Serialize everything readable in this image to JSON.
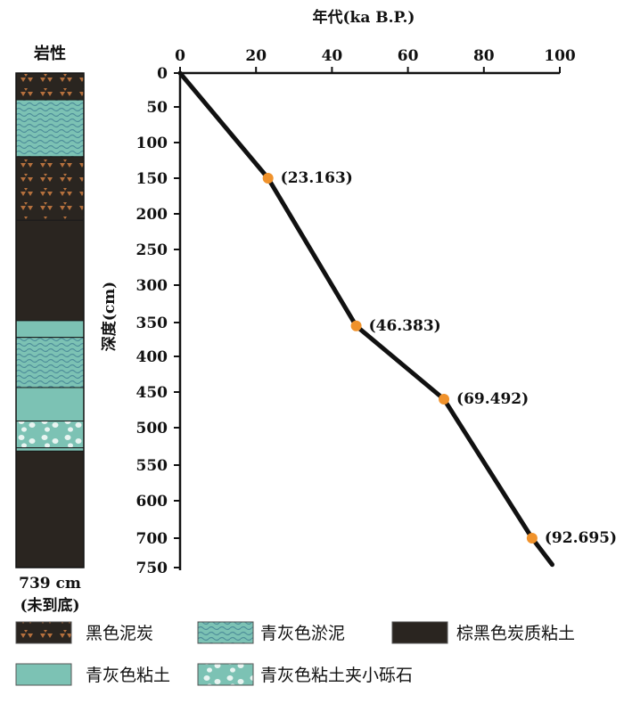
{
  "chart_data": {
    "type": "line",
    "title": "年代(ka B.P.)",
    "ylabel": "深度(cm)",
    "xlim": [
      0,
      100
    ],
    "x_ticks": [
      0,
      20,
      40,
      60,
      80,
      100
    ],
    "y_ticks": [
      0,
      50,
      100,
      150,
      200,
      250,
      300,
      350,
      400,
      450,
      500,
      550,
      600,
      700,
      750
    ],
    "x_axis_position": "top",
    "y_axis_inverted": true,
    "grid": false,
    "series": [
      {
        "line_color": "#111111",
        "points": [
          {
            "x": 0,
            "y": 0
          },
          {
            "x": 23.163,
            "y": 150
          },
          {
            "x": 46.383,
            "y": 355
          },
          {
            "x": 69.492,
            "y": 460
          },
          {
            "x": 92.695,
            "y": 700
          },
          {
            "x": 98,
            "y": 745
          }
        ]
      }
    ],
    "dated_points": [
      {
        "x": 23.163,
        "y": 150,
        "label": "(23.163)"
      },
      {
        "x": 46.383,
        "y": 355,
        "label": "(46.383)"
      },
      {
        "x": 69.492,
        "y": 460,
        "label": "(69.492)"
      },
      {
        "x": 92.695,
        "y": 700,
        "label": "(92.695)"
      }
    ],
    "marker_color": "#F0922B"
  },
  "lithology": {
    "title": "岩性",
    "depth_label": "739 cm",
    "note": "(未到底)",
    "layers": [
      {
        "type": "peat",
        "top": 0,
        "bottom": 40
      },
      {
        "type": "silt",
        "top": 40,
        "bottom": 125
      },
      {
        "type": "peat",
        "top": 125,
        "bottom": 220
      },
      {
        "type": "dark_clay",
        "top": 220,
        "bottom": 370
      },
      {
        "type": "clay",
        "top": 370,
        "bottom": 395
      },
      {
        "type": "silt",
        "top": 395,
        "bottom": 470
      },
      {
        "type": "clay",
        "top": 470,
        "bottom": 520
      },
      {
        "type": "gravel_clay",
        "top": 520,
        "bottom": 560
      },
      {
        "type": "clay",
        "top": 560,
        "bottom": 565
      },
      {
        "type": "dark_clay",
        "top": 565,
        "bottom": 739
      }
    ]
  },
  "legend": [
    {
      "type": "peat",
      "label": "黑色泥炭"
    },
    {
      "type": "silt",
      "label": "青灰色淤泥"
    },
    {
      "type": "dark_clay",
      "label": "棕黑色炭质粘土"
    },
    {
      "type": "clay",
      "label": "青灰色粘土"
    },
    {
      "type": "gravel_clay",
      "label": "青灰色粘土夹小砾石"
    }
  ],
  "colors": {
    "dark": "#2a2520",
    "peat_mark": "#b5703d",
    "teal": "#7cc2b4",
    "teal_wave": "#4e8e9a",
    "gravel": "#e8f4f1",
    "marker": "#F0922B"
  }
}
